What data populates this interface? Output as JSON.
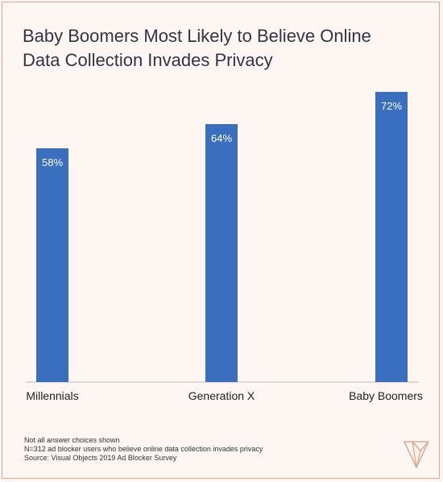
{
  "colors": {
    "bar": "#3a6fbf",
    "frame": "#e8a98a",
    "background": "#fdf6f2",
    "logo": "#e0a88c"
  },
  "chart_data": {
    "type": "bar",
    "title": "Baby Boomers Most Likely to Believe Online Data Collection Invades Privacy",
    "xlabel": "",
    "ylabel": "",
    "categories": [
      "Millennials",
      "Generation X",
      "Baby Boomers"
    ],
    "values": [
      58,
      64,
      72
    ],
    "value_labels": [
      "58%",
      "64%",
      "72%"
    ],
    "ylim": [
      0,
      75
    ],
    "grid": false,
    "legend": "none"
  },
  "footnotes": [
    "Not all answer choices shown",
    "N=312 ad blocker users who believe online data collection invades privacy",
    "Source: Visual Objects 2019 Ad Blocker Survey"
  ],
  "logo_icon": "visual-objects-logo-icon"
}
